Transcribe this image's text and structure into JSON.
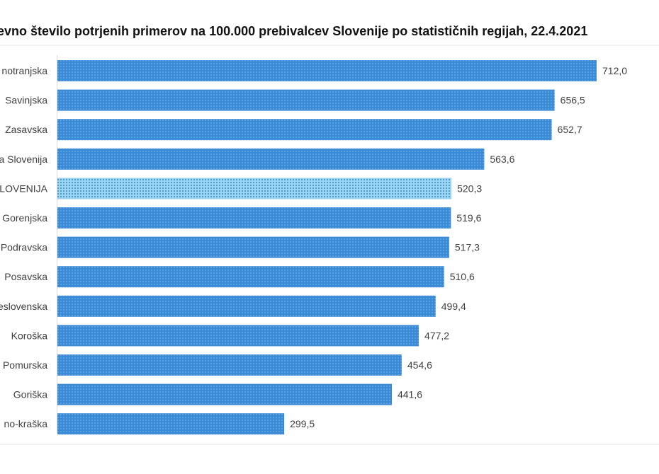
{
  "chart_data": {
    "type": "bar",
    "orientation": "horizontal",
    "title": "evno število potrjenih primerov na 100.000 prebivalcev Slovenije po statističnih regijah, 22.4.2021",
    "categories": [
      "notranjska",
      "Savinjska",
      "Zasavska",
      "a Slovenija",
      "SLOVENIJA",
      "Gorenjska",
      "Podravska",
      "Posavska",
      "eslovenska",
      "Koroška",
      "Pomurska",
      "Goriška",
      "no-kraška"
    ],
    "values": [
      712.0,
      656.5,
      652.7,
      563.6,
      520.3,
      519.6,
      517.3,
      510.6,
      499.4,
      477.2,
      454.6,
      441.6,
      299.5
    ],
    "labels": [
      "712,0",
      "656,5",
      "652,7",
      "563,6",
      "520,3",
      "519,6",
      "517,3",
      "510,6",
      "499,4",
      "477,2",
      "454,6",
      "441,6",
      "299,5"
    ],
    "highlight": "SLOVENIJA",
    "xlim": [
      0,
      712
    ],
    "grid": false,
    "colors": {
      "bar": "#3a8ad6",
      "highlight": "#8fd0ee",
      "text": "#404040"
    }
  }
}
